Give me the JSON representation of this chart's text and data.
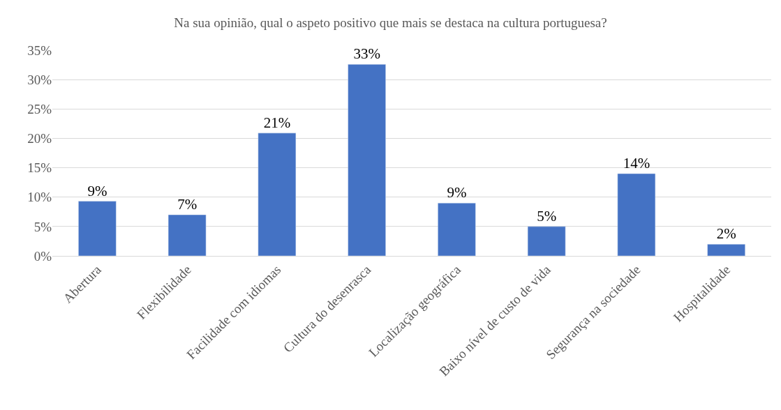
{
  "chart_data": {
    "type": "bar",
    "title": "Na sua opinião, qual o aspeto positivo que mais se destaca na cultura portuguesa?",
    "categories": [
      "Abertura",
      "Flexibilidade",
      "Facilidade com idiomas",
      "Cultura do desenrasca",
      "Localização geográfica",
      "Baixo nível de custo de vida",
      "Segurança na sociedade",
      "Hospitalidade"
    ],
    "values": [
      9.3,
      7,
      20.9,
      32.6,
      9,
      5,
      14,
      2
    ],
    "value_labels": [
      "9%",
      "7%",
      "21%",
      "33%",
      "9%",
      "5%",
      "14%",
      "2%"
    ],
    "color": "#4472c4",
    "ylim": [
      0,
      35
    ],
    "yticks": [
      {
        "value": 0,
        "label": "0%"
      },
      {
        "value": 5,
        "label": "5%"
      },
      {
        "value": 10,
        "label": "10%"
      },
      {
        "value": 15,
        "label": "15%"
      },
      {
        "value": 20,
        "label": "20%"
      },
      {
        "value": 25,
        "label": "25%"
      },
      {
        "value": 30,
        "label": "30%"
      },
      {
        "value": 35,
        "label": "35%"
      }
    ],
    "grid": "y"
  }
}
